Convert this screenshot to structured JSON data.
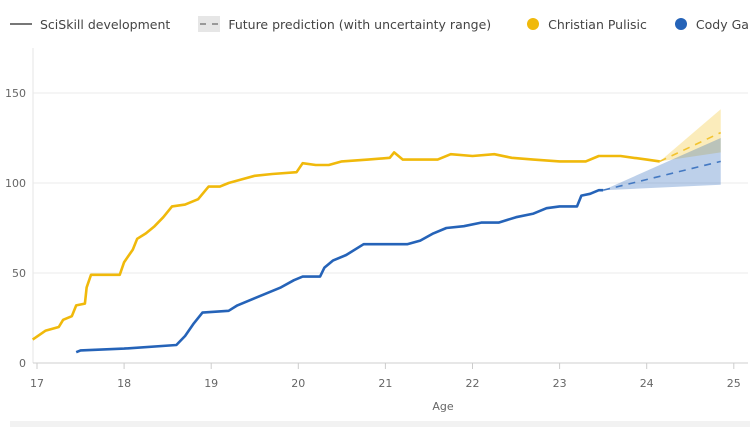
{
  "legend": {
    "development": "SciSkill development",
    "prediction": "Future prediction (with uncertainty range)",
    "players": [
      "Christian Pulisic",
      "Cody Gakpo"
    ]
  },
  "chart_data": {
    "type": "line",
    "xlabel": "Age",
    "ylabel": "",
    "xlim": [
      16.95,
      25.1
    ],
    "ylim": [
      0,
      175
    ],
    "xticks": [
      17,
      18,
      19,
      20,
      21,
      22,
      23,
      24,
      25
    ],
    "yticks": [
      0,
      50,
      100,
      150
    ],
    "grid": "horizontal",
    "legend_position": "top",
    "series": [
      {
        "name": "Christian Pulisic",
        "color": "#f0b90b",
        "x": [
          16.95,
          17.1,
          17.25,
          17.3,
          17.4,
          17.45,
          17.55,
          17.57,
          17.62,
          17.95,
          18.0,
          18.1,
          18.15,
          18.25,
          18.35,
          18.45,
          18.55,
          18.7,
          18.85,
          18.97,
          19.1,
          19.2,
          19.35,
          19.5,
          19.7,
          19.98,
          20.05,
          20.2,
          20.35,
          20.5,
          20.8,
          21.05,
          21.1,
          21.2,
          21.6,
          21.75,
          22.0,
          22.25,
          22.45,
          22.7,
          23.0,
          23.3,
          23.45,
          23.7,
          24.0,
          24.15
        ],
        "y": [
          13,
          18,
          20,
          24,
          26,
          32,
          33,
          42,
          49,
          49,
          56,
          63,
          69,
          72,
          76,
          81,
          87,
          88,
          91,
          98,
          98,
          100,
          102,
          104,
          105,
          106,
          111,
          110,
          110,
          112,
          113,
          114,
          117,
          113,
          113,
          116,
          115,
          116,
          114,
          113,
          112,
          112,
          115,
          115,
          113,
          112
        ],
        "prediction": {
          "x": [
            24.15,
            24.85
          ],
          "y": [
            112,
            128
          ],
          "upper": [
            112,
            141
          ],
          "lower": [
            112,
            117
          ]
        }
      },
      {
        "name": "Cody Gakpo",
        "color": "#2563b8",
        "x": [
          17.45,
          17.5,
          18.0,
          18.6,
          18.7,
          18.8,
          18.9,
          19.2,
          19.3,
          19.5,
          19.8,
          19.95,
          20.05,
          20.25,
          20.3,
          20.4,
          20.55,
          20.75,
          21.0,
          21.25,
          21.4,
          21.55,
          21.7,
          21.9,
          22.1,
          22.3,
          22.5,
          22.7,
          22.85,
          23.0,
          23.2,
          23.25,
          23.35,
          23.45,
          23.5
        ],
        "y": [
          6,
          7,
          8,
          10,
          15,
          22,
          28,
          29,
          32,
          36,
          42,
          46,
          48,
          48,
          53,
          57,
          60,
          66,
          66,
          66,
          68,
          72,
          75,
          76,
          78,
          78,
          81,
          83,
          86,
          87,
          87,
          93,
          94,
          96,
          96
        ],
        "prediction": {
          "x": [
            23.5,
            24.85
          ],
          "y": [
            96,
            112
          ],
          "upper": [
            96,
            125
          ],
          "lower": [
            96,
            99
          ]
        }
      }
    ]
  }
}
